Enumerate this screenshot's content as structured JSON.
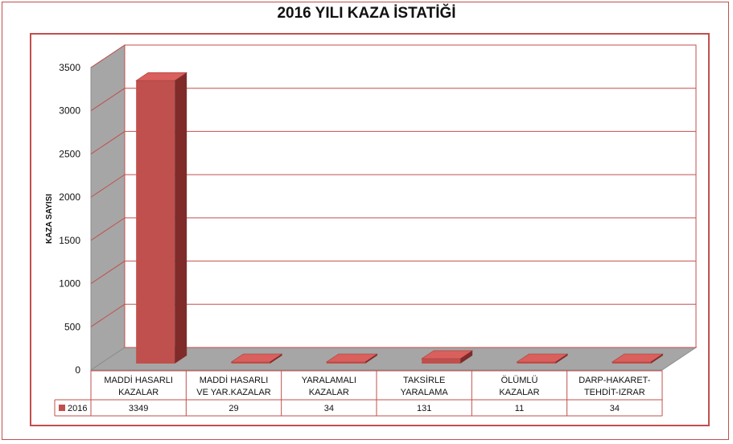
{
  "chart_data": {
    "type": "bar",
    "title": "2016 YILI KAZA İSTATİĞİ",
    "ylabel": "KAZA SAYISI",
    "xlabel": "",
    "ylim": [
      0,
      3500
    ],
    "yticks": [
      0,
      500,
      1000,
      1500,
      2000,
      2500,
      3000,
      3500
    ],
    "categories": [
      [
        "MADDİ HASARLI",
        "KAZALAR"
      ],
      [
        "MADDİ HASARLI",
        "VE YAR.KAZALAR"
      ],
      [
        "YARALAMALI",
        "KAZALAR"
      ],
      [
        "TAKSİRLE",
        "YARALAMA"
      ],
      [
        "ÖLÜMLÜ",
        "KAZALAR"
      ],
      [
        "DARP-HAKARET-",
        "TEHDİT-IZRAR"
      ]
    ],
    "series": [
      {
        "name": "2016",
        "values": [
          3349,
          29,
          34,
          131,
          11,
          34
        ]
      }
    ],
    "grid": true,
    "data_table": true,
    "colors": {
      "bar_front": "#c0504d",
      "bar_top": "#d9605d",
      "bar_side": "#7f2b2a",
      "wall": "#a6a6a6",
      "gridline": "#c0504d"
    }
  }
}
